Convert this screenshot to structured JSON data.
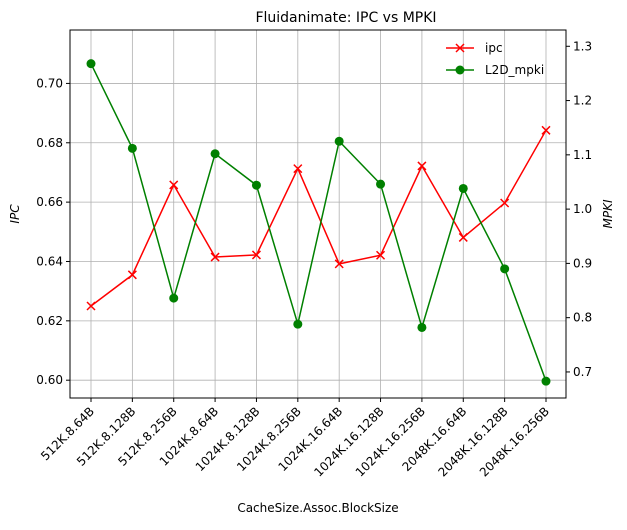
{
  "chart_data": {
    "type": "line",
    "title": "Fluidanimate: IPC vs MPKI",
    "xlabel": "CacheSize.Assoc.BlockSize",
    "ylabel": "IPC",
    "ylabel_right": "MPKI",
    "categories": [
      "512K.8.64B",
      "512K.8.128B",
      "512K.8.256B",
      "1024K.8.64B",
      "1024K.8.128B",
      "1024K.8.256B",
      "1024K.16.64B",
      "1024K.16.128B",
      "1024K.16.256B",
      "2048K.16.64B",
      "2048K.16.128B",
      "2048K.16.256B"
    ],
    "ylim": [
      0.594,
      0.718
    ],
    "ylim_right": [
      0.652,
      1.33
    ],
    "yticks": [
      "0.60",
      "0.62",
      "0.64",
      "0.66",
      "0.68",
      "0.70"
    ],
    "yticks_right": [
      "0.7",
      "0.8",
      "0.9",
      "1.0",
      "1.1",
      "1.2",
      "1.3"
    ],
    "grid": true,
    "legend_position": "top-right",
    "series": [
      {
        "name": "ipc",
        "axis": "left",
        "color": "#ff0000",
        "marker": "x",
        "values": [
          0.625,
          0.6355,
          0.6658,
          0.6415,
          0.6422,
          0.6713,
          0.6392,
          0.6421,
          0.6722,
          0.6481,
          0.6597,
          0.6842
        ]
      },
      {
        "name": "L2D_mpki",
        "axis": "right",
        "color": "#008000",
        "marker": "o",
        "values": [
          1.268,
          1.112,
          0.836,
          1.102,
          1.044,
          0.788,
          1.125,
          1.046,
          0.782,
          1.038,
          0.89,
          0.683
        ]
      }
    ]
  }
}
